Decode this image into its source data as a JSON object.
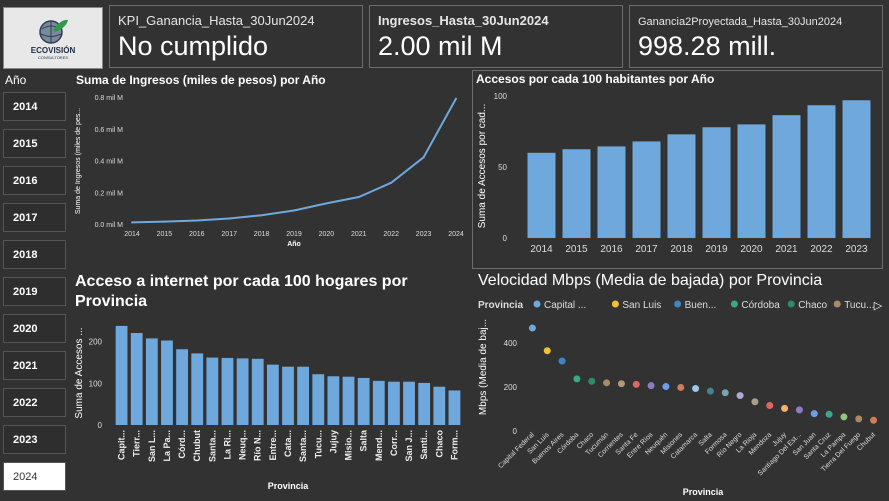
{
  "logo": {
    "name": "ECOVISIÓN",
    "sub": "CONSULTORES"
  },
  "kpis": [
    {
      "title": "KPI_Ganancia_Hasta_30Jun2024",
      "value": "No cumplido"
    },
    {
      "title": "Ingresos_Hasta_30Jun2024",
      "value": "2.00 mil M"
    },
    {
      "title": "Ganancia2Proyectada_Hasta_30Jun2024",
      "value": "998.28 mill."
    }
  ],
  "slicer": {
    "title": "Año",
    "years": [
      "2014",
      "2015",
      "2016",
      "2017",
      "2018",
      "2019",
      "2020",
      "2021",
      "2022",
      "2023",
      "2024"
    ],
    "selected": "2024"
  },
  "colors": {
    "bar": "#6fa8dc",
    "line": "#6fa8dc",
    "background": "#323232"
  },
  "chart_data": [
    {
      "type": "line",
      "title": "Suma de Ingresos (miles de pesos) por Año",
      "xlabel": "Año",
      "ylabel": "Suma de Ingresos (miles de pes...",
      "x": [
        "2014",
        "2015",
        "2016",
        "2017",
        "2018",
        "2019",
        "2020",
        "2021",
        "2022",
        "2023",
        "2024"
      ],
      "values": [
        0.01,
        0.015,
        0.022,
        0.035,
        0.055,
        0.085,
        0.13,
        0.17,
        0.26,
        0.42,
        0.79
      ],
      "yticks": [
        "0.0 mil M",
        "0.2 mil M",
        "0.4 mil M",
        "0.6 mil M",
        "0.8 mil M"
      ],
      "ylim": [
        0,
        0.8
      ],
      "grid": false
    },
    {
      "type": "bar",
      "title": "Accesos por cada 100 habitantes por Año",
      "xlabel": "",
      "ylabel": "Suma de Accesos por cad...",
      "categories": [
        "2014",
        "2015",
        "2016",
        "2017",
        "2018",
        "2019",
        "2020",
        "2021",
        "2022",
        "2023"
      ],
      "values": [
        60,
        62.5,
        64.5,
        68,
        73,
        78,
        80,
        86.5,
        93.5,
        97
      ],
      "yticks": [
        "0",
        "50",
        "100"
      ],
      "ylim": [
        0,
        100
      ]
    },
    {
      "type": "bar",
      "title": "Acceso a internet por cada 100 hogares por Provincia",
      "xlabel": "Provincia",
      "ylabel": "Suma de Accesos ...",
      "categories": [
        "Capit...",
        "Tierr...",
        "San L...",
        "La Pa...",
        "Córd...",
        "Chubut",
        "Santa...",
        "La Ri...",
        "Neuq...",
        "Río N...",
        "Entre...",
        "Cata...",
        "Santa...",
        "Tucu...",
        "Jujuy",
        "Misio...",
        "Salta",
        "Mend...",
        "Corr...",
        "San J...",
        "Santi...",
        "Chaco",
        "Form..."
      ],
      "values": [
        238,
        221,
        208,
        203,
        182,
        172,
        162,
        161,
        160,
        159,
        145,
        140,
        140,
        122,
        117,
        116,
        113,
        106,
        104,
        104,
        101,
        92,
        83
      ],
      "yticks": [
        "0",
        "100",
        "200"
      ],
      "ylim": [
        0,
        245
      ]
    },
    {
      "type": "scatter",
      "title": "Velocidad Mbps (Media de bajada) por Provincia",
      "xlabel": "Provincia",
      "ylabel": "Mbps (Media de baj...",
      "legend_title": "Provincia",
      "legend": [
        "Capital ...",
        "San Luis",
        "Buen...",
        "Córdoba",
        "Chaco",
        "Tucu..."
      ],
      "categories": [
        "Capital Federal",
        "San Luis",
        "Buenos Aires",
        "Córdoba",
        "Chaco",
        "Tucumán",
        "Corrientes",
        "Santa Fe",
        "Entre Ríos",
        "Neuquén",
        "Misiones",
        "Catamarca",
        "Salta",
        "Formosa",
        "Río Negro",
        "La Rioja",
        "Mendoza",
        "Jujuy",
        "Santiago Del Est...",
        "San Juan",
        "Santa Cruz",
        "La Pampa",
        "Tierra Del Fuego",
        "Chubut"
      ],
      "values": [
        468,
        365,
        318,
        237,
        226,
        219,
        215,
        212,
        206,
        202,
        198,
        193,
        181,
        174,
        161,
        133,
        116,
        103,
        96,
        79,
        76,
        64,
        55,
        49
      ],
      "point_colors": [
        "#6fa8dc",
        "#f1c232",
        "#3d85c6",
        "#38a88a",
        "#2e8b6d",
        "#a68b6a",
        "#b9967a",
        "#e06666",
        "#8e7cc3",
        "#6d9eeb",
        "#cc7e5a",
        "#9fc5e8",
        "#45818e",
        "#76a5af",
        "#b4a7d6",
        "#a89f8a",
        "#e06666",
        "#f6b26b",
        "#8e7cc3",
        "#6d9eeb",
        "#38a88a",
        "#93c47d",
        "#a68b6a",
        "#cc7e5a"
      ],
      "yticks": [
        "0",
        "200",
        "400"
      ],
      "ylim": [
        0,
        500
      ]
    }
  ]
}
